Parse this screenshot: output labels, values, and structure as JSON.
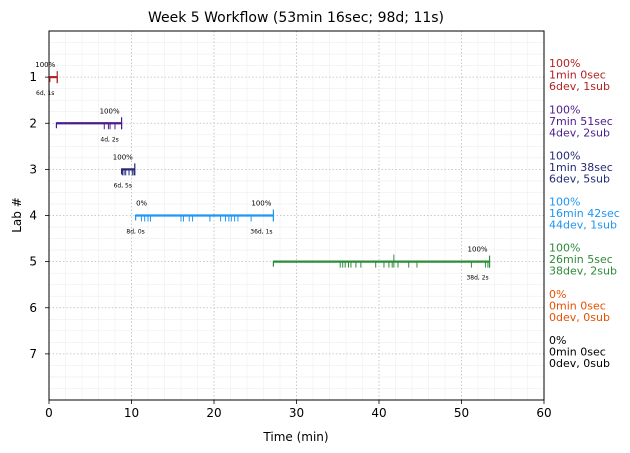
{
  "chart_data": {
    "type": "timeline",
    "title": "Week 5 Workflow (53min 16sec; 98d; 11s)",
    "xlabel": "Time (min)",
    "ylabel": "Lab #",
    "xlim": [
      0,
      60
    ],
    "ylim": [
      0,
      8
    ],
    "x_ticks": [
      0,
      10,
      20,
      30,
      40,
      50,
      60
    ],
    "y_ticks": [
      1,
      2,
      3,
      4,
      5,
      6,
      7
    ],
    "grid": true,
    "labs": [
      {
        "lab": 1,
        "color": "#b22222",
        "start": 0.1,
        "end": 1.0,
        "tick_marks": [
          1.0
        ],
        "start_pct": "",
        "end_pct": "100%",
        "end_counts": "6d, 1s",
        "summary": [
          "100%",
          "1min 0sec",
          "6dev, 1sub"
        ]
      },
      {
        "lab": 2,
        "color": "#4b1c8c",
        "start": 0.9,
        "end": 8.8,
        "tick_marks": [
          6.7,
          7.2,
          7.4,
          8.0,
          8.8
        ],
        "start_pct": "",
        "end_pct": "100%",
        "end_counts": "4d, 2s",
        "summary": [
          "100%",
          "7min 51sec",
          "4dev, 2sub"
        ]
      },
      {
        "lab": 3,
        "color": "#232a78",
        "start": 8.8,
        "end": 10.4,
        "tick_marks": [
          8.9,
          9.1,
          9.3,
          9.7,
          10.1,
          10.3
        ],
        "start_pct": "",
        "end_pct": "100%",
        "end_counts": "6d, 5s",
        "summary": [
          "100%",
          "1min 38sec",
          "6dev, 5sub"
        ]
      },
      {
        "lab": 4,
        "color": "#2196f3",
        "start": 10.5,
        "end": 27.2,
        "tick_marks": [
          11.2,
          11.6,
          12.0,
          12.3,
          16.0,
          16.3,
          17.0,
          17.4,
          19.5,
          20.8,
          21.4,
          21.8,
          22.1,
          22.5,
          22.9,
          24.5,
          27.2
        ],
        "start_pct": "0%",
        "start_counts": "8d, 0s",
        "end_pct": "100%",
        "end_counts": "36d, 1s",
        "summary": [
          "100%",
          "16min 42sec",
          "44dev, 1sub"
        ]
      },
      {
        "lab": 5,
        "color": "#2e8b3a",
        "start": 27.2,
        "end": 53.4,
        "tick_marks": [
          35.3,
          35.6,
          35.9,
          36.3,
          36.6,
          37.2,
          37.8,
          39.6,
          40.6,
          41.2,
          41.6,
          42.3,
          43.6,
          44.6,
          51.2,
          52.9,
          53.2,
          53.4
        ],
        "tall_marks": [
          41.8
        ],
        "start_pct": "",
        "end_pct": "100%",
        "end_counts": "38d, 2s",
        "summary": [
          "100%",
          "26min 5sec",
          "38dev, 2sub"
        ]
      },
      {
        "lab": 6,
        "color": "#e65100",
        "start": null,
        "end": null,
        "tick_marks": [],
        "start_pct": "",
        "end_pct": "",
        "end_counts": "",
        "summary": [
          "0%",
          "0min 0sec",
          "0dev, 0sub"
        ]
      },
      {
        "lab": 7,
        "color": "#000000",
        "start": null,
        "end": null,
        "tick_marks": [],
        "start_pct": "",
        "end_pct": "",
        "end_counts": "",
        "summary": [
          "0%",
          "0min 0sec",
          "0dev, 0sub"
        ]
      }
    ]
  }
}
